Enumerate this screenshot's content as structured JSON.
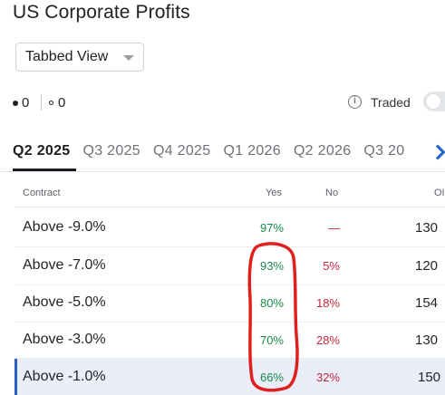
{
  "page": {
    "title": "US Corporate Profits"
  },
  "view_select": {
    "selected": "Tabbed View"
  },
  "counters": {
    "filled_count": "0",
    "hollow_count": "0"
  },
  "traded_toggle": {
    "label": "Traded",
    "icon": "info-icon",
    "on": false
  },
  "tabs": [
    {
      "label": "Q2 2025",
      "active": true
    },
    {
      "label": "Q3 2025",
      "active": false
    },
    {
      "label": "Q4 2025",
      "active": false
    },
    {
      "label": "Q1 2026",
      "active": false
    },
    {
      "label": "Q2 2026",
      "active": false
    },
    {
      "label": "Q3 20",
      "active": false
    }
  ],
  "table": {
    "headers": {
      "contract": "Contract",
      "yes": "Yes",
      "no": "No",
      "oi": "OI"
    },
    "rows": [
      {
        "contract": "Above -9.0%",
        "yes": "97%",
        "no": "—",
        "oi": "130"
      },
      {
        "contract": "Above -7.0%",
        "yes": "93%",
        "no": "5%",
        "oi": "120"
      },
      {
        "contract": "Above -5.0%",
        "yes": "80%",
        "no": "18%",
        "oi": "154"
      },
      {
        "contract": "Above -3.0%",
        "yes": "70%",
        "no": "28%",
        "oi": "130"
      },
      {
        "contract": "Above -1.0%",
        "yes": "66%",
        "no": "32%",
        "oi": "150",
        "selected": true
      }
    ]
  },
  "colors": {
    "yes_green": "#19894a",
    "no_red": "#c3283d",
    "accent_blue": "#2b5fc4",
    "annotation_red": "#e0201e"
  }
}
